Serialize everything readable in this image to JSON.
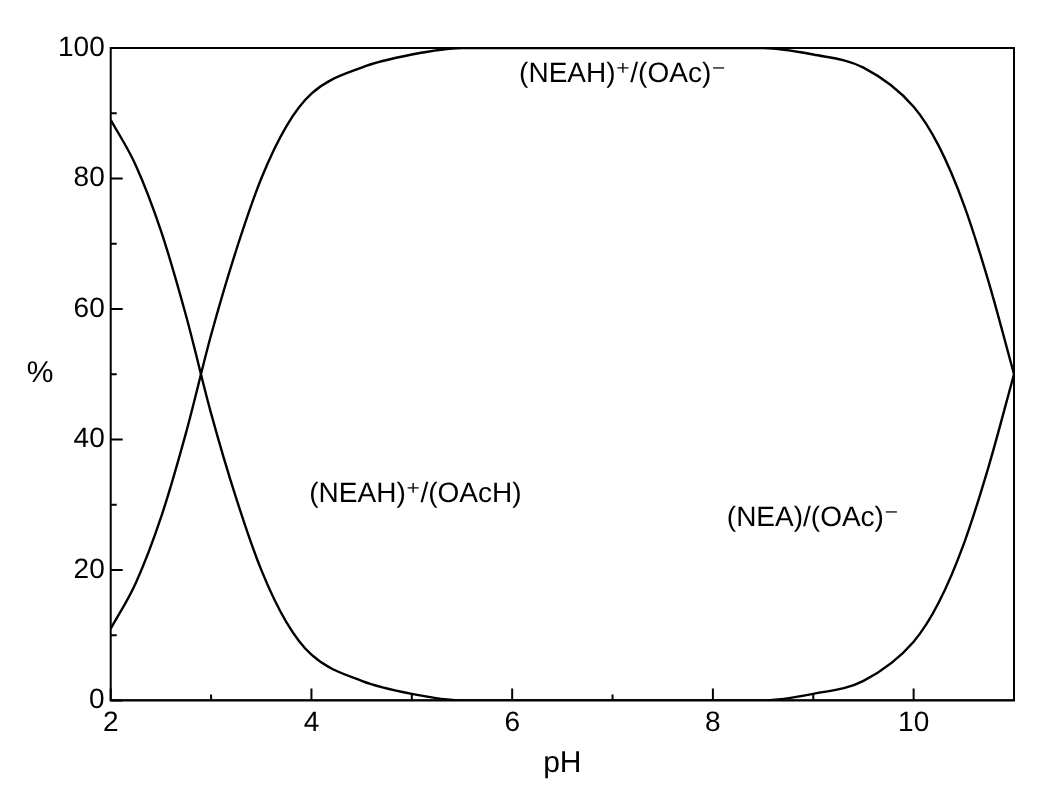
{
  "chart_data": {
    "type": "line",
    "xlabel": "pH",
    "ylabel": "%",
    "x": [
      2,
      2.25,
      2.5,
      2.75,
      3,
      3.25,
      3.5,
      3.75,
      4,
      4.5,
      5,
      5.5,
      6,
      7,
      8,
      8.5,
      9,
      9.5,
      10,
      10.25,
      10.5,
      10.75,
      11
    ],
    "series": [
      {
        "name": "(NEAH)⁺/(OAcH)",
        "color": "#000000",
        "values": [
          89,
          82,
          72,
          59,
          44,
          31,
          20,
          12,
          7,
          3,
          1,
          0,
          0,
          0,
          0,
          0,
          0,
          0,
          0,
          0,
          0,
          0,
          0
        ]
      },
      {
        "name": "(NEAH)⁺/(OAc)⁻",
        "color": "#000000",
        "values": [
          11,
          18,
          28,
          41,
          56,
          69,
          80,
          88,
          93,
          97,
          99,
          100,
          100,
          100,
          100,
          100,
          99,
          97,
          91,
          85,
          76,
          64,
          50
        ]
      },
      {
        "name": "(NEA)/(OAc)⁻",
        "color": "#000000",
        "values": [
          0,
          0,
          0,
          0,
          0,
          0,
          0,
          0,
          0,
          0,
          0,
          0,
          0,
          0,
          0,
          0,
          1,
          3,
          9,
          15,
          24,
          36,
          50
        ]
      }
    ],
    "xlim": [
      2,
      11
    ],
    "xticks": [
      2,
      {
        "value": 3,
        "label": null
      },
      4,
      {
        "value": 5,
        "label": null
      },
      6,
      {
        "value": 7,
        "label": null
      },
      8,
      {
        "value": 9,
        "label": null
      },
      10,
      {
        "value": 11,
        "label": null
      }
    ],
    "ylim": [
      0,
      100
    ],
    "yticks": [
      0,
      {
        "value": 10,
        "label": null
      },
      20,
      {
        "value": 30,
        "label": null
      },
      40,
      {
        "value": 50,
        "label": null
      },
      60,
      {
        "value": 70,
        "label": null
      },
      80,
      {
        "value": 90,
        "label": null
      },
      100
    ],
    "grid": false,
    "legend": false,
    "marker": "none",
    "line_style": "solid"
  }
}
